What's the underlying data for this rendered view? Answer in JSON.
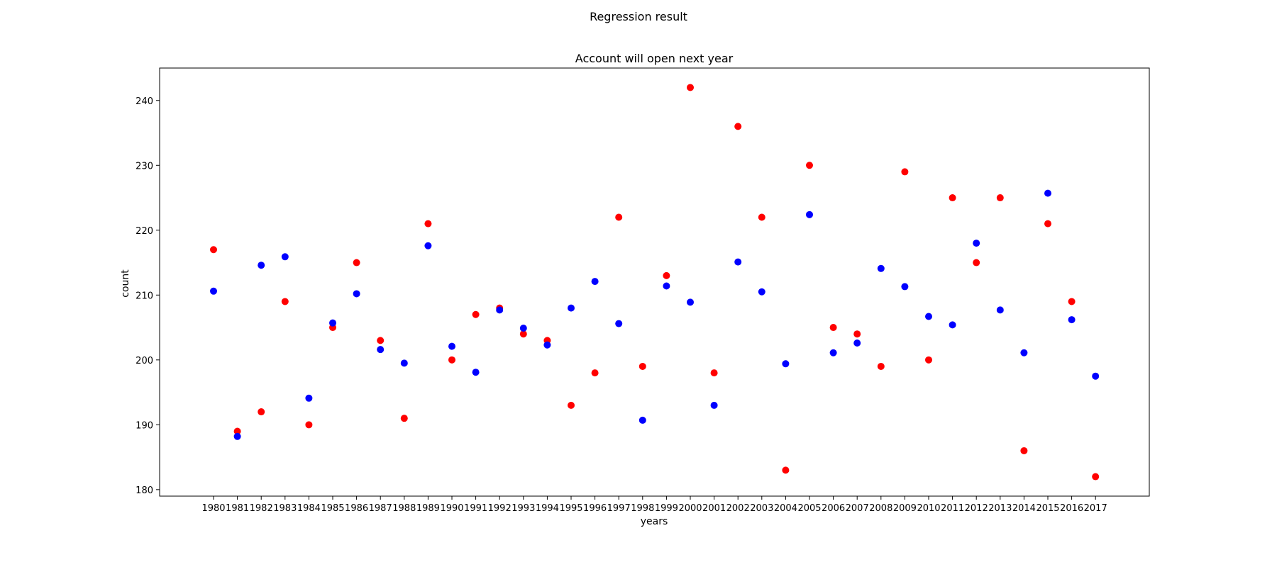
{
  "chart_data": {
    "type": "scatter",
    "suptitle": "Regression result",
    "title": "Account will open next year",
    "xlabel": "years",
    "ylabel": "count",
    "ylim": [
      179,
      245
    ],
    "yticks": [
      180,
      190,
      200,
      210,
      220,
      230,
      240
    ],
    "x": [
      1980,
      1981,
      1982,
      1983,
      1984,
      1985,
      1986,
      1987,
      1988,
      1989,
      1990,
      1991,
      1992,
      1993,
      1994,
      1995,
      1996,
      1997,
      1998,
      1999,
      2000,
      2001,
      2002,
      2003,
      2004,
      2005,
      2006,
      2007,
      2008,
      2009,
      2010,
      2011,
      2012,
      2013,
      2014,
      2015,
      2016,
      2017
    ],
    "grid": false,
    "legend": "none",
    "series": [
      {
        "color": "#ff0000",
        "values": [
          217,
          189,
          192,
          209,
          190,
          205,
          215,
          203,
          191,
          221,
          200,
          207,
          208,
          204,
          203,
          193,
          198,
          222,
          199,
          213,
          242,
          198,
          236,
          222,
          183,
          230,
          205,
          204,
          199,
          229,
          200,
          225,
          215,
          225,
          186,
          221,
          209,
          182
        ]
      },
      {
        "color": "#0000ff",
        "values": [
          210.6,
          188.2,
          214.6,
          215.9,
          194.1,
          205.7,
          210.2,
          201.6,
          199.5,
          217.6,
          202.1,
          198.1,
          207.7,
          204.9,
          202.3,
          208.0,
          212.1,
          205.6,
          190.7,
          211.4,
          208.9,
          193.0,
          215.1,
          210.5,
          199.4,
          222.4,
          201.1,
          202.6,
          214.1,
          211.3,
          206.7,
          205.4,
          218.0,
          207.7,
          201.1,
          225.7,
          206.2,
          197.5
        ]
      }
    ]
  }
}
